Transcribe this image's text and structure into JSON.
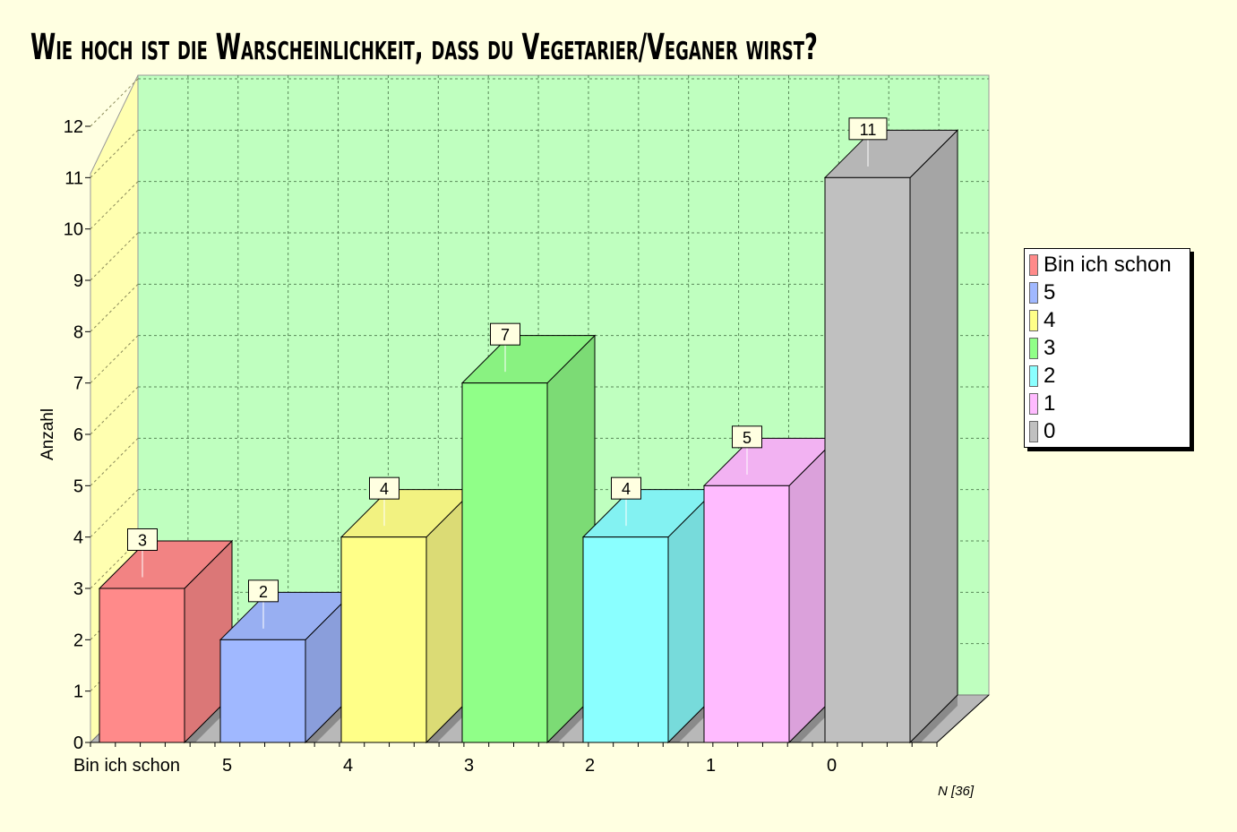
{
  "chart_data": {
    "type": "bar",
    "title": "Wie hoch ist die Warscheinlichkeit, dass du Vegetarier/Veganer wirst?",
    "ylabel": "Anzahl",
    "xlabel": "",
    "categories": [
      "Bin ich schon",
      "5",
      "4",
      "3",
      "2",
      "1",
      "0"
    ],
    "values": [
      3,
      2,
      4,
      7,
      4,
      5,
      11
    ],
    "ylim": [
      0,
      12
    ],
    "yticks": [
      "0",
      "1",
      "2",
      "3",
      "4",
      "5",
      "6",
      "7",
      "8",
      "9",
      "10",
      "11",
      "12"
    ],
    "colors": [
      "#FF8A8A",
      "#A0B8FF",
      "#FFFF88",
      "#90FF88",
      "#8AFFFF",
      "#FFBBFF",
      "#C0C0C0"
    ],
    "legend": [
      "Bin ich schon",
      "5",
      "4",
      "3",
      "2",
      "1",
      "0"
    ],
    "legend_position": "right",
    "grid": true,
    "note": "N [36]"
  }
}
